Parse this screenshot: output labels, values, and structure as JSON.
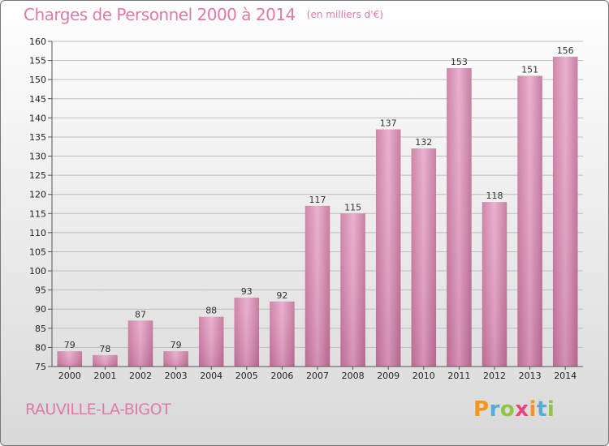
{
  "chart_data": {
    "type": "bar",
    "title": "Charges de Personnel 2000 à 2014",
    "subtitle": "(en milliers d'€)",
    "xlabel": "",
    "ylabel": "",
    "categories": [
      "2000",
      "2001",
      "2002",
      "2003",
      "2004",
      "2005",
      "2006",
      "2007",
      "2008",
      "2009",
      "2010",
      "2011",
      "2012",
      "2013",
      "2014"
    ],
    "values": [
      79,
      78,
      87,
      79,
      88,
      93,
      92,
      117,
      115,
      137,
      132,
      153,
      118,
      151,
      156
    ],
    "ylim": [
      75,
      160
    ],
    "yticks": [
      75,
      80,
      85,
      90,
      95,
      100,
      105,
      110,
      115,
      120,
      125,
      130,
      135,
      140,
      145,
      150,
      155,
      160
    ],
    "grid": true,
    "legend": "none"
  },
  "commune": "RAUVILLE-LA-BIGOT",
  "logo": {
    "letters": [
      "P",
      "r",
      "o",
      "x",
      "i",
      "t",
      "i"
    ],
    "colors": [
      "#f7941d",
      "#5aa9d6",
      "#8dc63f",
      "#e8457a",
      "#f7941d",
      "#5aa9d6",
      "#8dc63f"
    ]
  },
  "colors": {
    "bar": "#d88eb6",
    "title": "#e07aa8",
    "grid": "#bdbdbd"
  }
}
